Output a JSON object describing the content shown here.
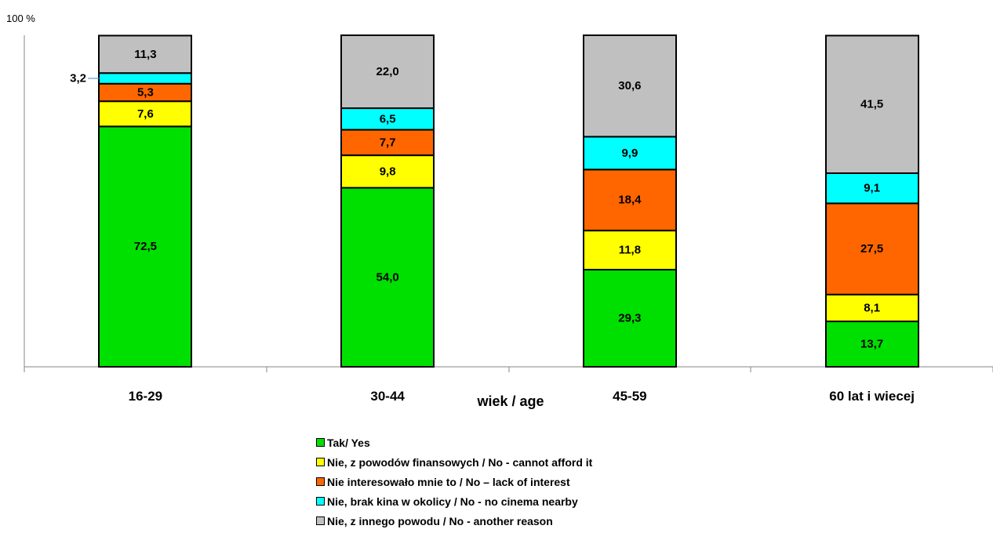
{
  "chart_data": {
    "type": "bar",
    "stacked": true,
    "title": "",
    "xlabel": "wiek / age",
    "ylabel": "",
    "y_top_label": "100 %",
    "ylim": [
      0,
      100
    ],
    "grid": false,
    "legend_placement": "bottom-center",
    "categories": [
      "16-29",
      "30-44",
      "45-59",
      "60 lat i wiecej"
    ],
    "series": [
      {
        "name": "Tak/ Yes",
        "color": "#00e000",
        "values": [
          72.5,
          54.0,
          29.3,
          13.7
        ],
        "labels": [
          "72,5",
          "54,0",
          "29,3",
          "13,7"
        ]
      },
      {
        "name": "Nie, z powodów finansowych / No - cannot afford it",
        "color": "#ffff00",
        "values": [
          7.6,
          9.8,
          11.8,
          8.1
        ],
        "labels": [
          "7,6",
          "9,8",
          "11,8",
          "8,1"
        ]
      },
      {
        "name": "Nie interesowało mnie to / No – lack of interest",
        "color": "#ff6600",
        "values": [
          5.3,
          7.7,
          18.4,
          27.5
        ],
        "labels": [
          "5,3",
          "7,7",
          "18,4",
          "27,5"
        ]
      },
      {
        "name": "Nie, brak kina w okolicy / No - no cinema nearby",
        "color": "#00ffff",
        "values": [
          3.2,
          6.5,
          9.9,
          9.1
        ],
        "labels": [
          "3,2",
          "6,5",
          "9,9",
          "9,1"
        ]
      },
      {
        "name": "Nie, z innego powodu / No - another reason",
        "color": "#c0c0c0",
        "values": [
          11.3,
          22.0,
          30.6,
          41.5
        ],
        "labels": [
          "11,3",
          "22,0",
          "30,6",
          "41,5"
        ]
      }
    ],
    "annotations": [
      {
        "category": "16-29",
        "series": "Nie, brak kina w okolicy / No - no cinema nearby",
        "text": "3,2",
        "placement": "outside-left"
      }
    ]
  }
}
